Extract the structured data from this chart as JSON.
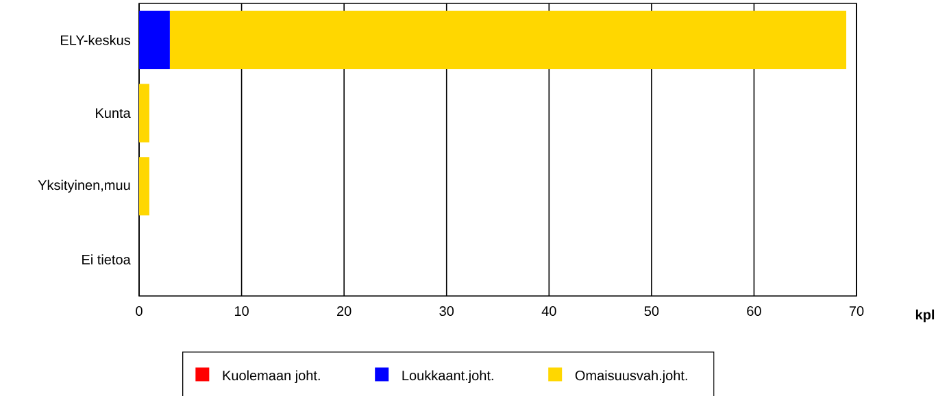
{
  "chart_data": {
    "type": "bar",
    "orientation": "horizontal",
    "stacked": true,
    "categories": [
      "ELY-keskus",
      "Kunta",
      "Yksityinen,muu",
      "Ei tietoa"
    ],
    "series": [
      {
        "name": "Kuolemaan joht.",
        "color": "#ff0000",
        "values": [
          0,
          0,
          0,
          0
        ]
      },
      {
        "name": "Loukkaant.joht.",
        "color": "#0000ff",
        "values": [
          3,
          0,
          0,
          0
        ]
      },
      {
        "name": "Omaisuusvah.joht.",
        "color": "#ffd700",
        "values": [
          66,
          1,
          1,
          0
        ]
      }
    ],
    "xlabel": "kpl",
    "xlim": [
      0,
      70
    ],
    "xticks": [
      0,
      10,
      20,
      30,
      40,
      50,
      60,
      70
    ],
    "grid": "x",
    "legend": "bottom"
  }
}
